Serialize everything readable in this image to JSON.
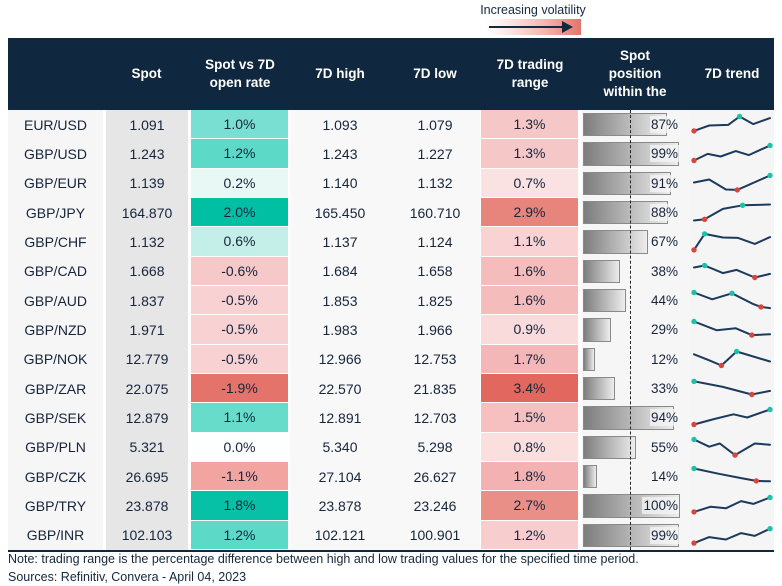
{
  "legend": {
    "label": "Increasing volatility"
  },
  "table": {
    "headers": [
      {
        "id": "pair",
        "lines": []
      },
      {
        "id": "spot",
        "lines": [
          "Spot"
        ]
      },
      {
        "id": "delta",
        "lines": [
          "Spot vs 7D",
          "open rate"
        ]
      },
      {
        "id": "high",
        "lines": [
          "7D high"
        ]
      },
      {
        "id": "low",
        "lines": [
          "7D low"
        ]
      },
      {
        "id": "range",
        "lines": [
          "7D trading",
          "range"
        ]
      },
      {
        "id": "position",
        "lines": [
          "Spot",
          "position",
          "within the"
        ]
      },
      {
        "id": "trend",
        "lines": [
          "7D trend"
        ]
      }
    ]
  },
  "chart_data": {
    "type": "table",
    "title": "FX 7-day volatility table",
    "columns": [
      "Pair",
      "Spot",
      "Spot vs 7D open rate",
      "7D high",
      "7D low",
      "7D trading range",
      "Spot position within the 7D range",
      "7D trend"
    ],
    "rows": [
      {
        "pair": "EUR/USD",
        "spot": "1.091",
        "delta": "1.0%",
        "delta_color": "#7adfd3",
        "high": "1.093",
        "low": "1.079",
        "range": "1.3%",
        "range_color": "#f6c7c7",
        "position": "87%",
        "position_pct": 87,
        "spark": {
          "points": [
            [
              0,
              82
            ],
            [
              20,
              55
            ],
            [
              45,
              52
            ],
            [
              60,
              10
            ],
            [
              78,
              48
            ],
            [
              100,
              18
            ]
          ],
          "red": [
            0
          ],
          "teal": [
            3
          ]
        }
      },
      {
        "pair": "GBP/USD",
        "spot": "1.243",
        "delta": "1.2%",
        "delta_color": "#5cd9c7",
        "high": "1.243",
        "low": "1.227",
        "range": "1.3%",
        "range_color": "#f6c7c7",
        "position": "99%",
        "position_pct": 99,
        "spark": {
          "points": [
            [
              0,
              85
            ],
            [
              18,
              52
            ],
            [
              35,
              65
            ],
            [
              55,
              38
            ],
            [
              72,
              58
            ],
            [
              100,
              10
            ]
          ],
          "red": [
            0
          ],
          "teal": [
            5
          ]
        }
      },
      {
        "pair": "GBP/EUR",
        "spot": "1.139",
        "delta": "0.2%",
        "delta_color": "#e8f8f5",
        "high": "1.140",
        "low": "1.132",
        "range": "0.7%",
        "range_color": "#fbe2e2",
        "position": "91%",
        "position_pct": 91,
        "spark": {
          "points": [
            [
              0,
              45
            ],
            [
              20,
              30
            ],
            [
              42,
              80
            ],
            [
              57,
              82
            ],
            [
              100,
              10
            ]
          ],
          "red": [
            3
          ],
          "teal": [
            4
          ]
        }
      },
      {
        "pair": "GBP/JPY",
        "spot": "164.870",
        "delta": "2.0%",
        "delta_color": "#00bfa3",
        "high": "165.450",
        "low": "160.710",
        "range": "2.9%",
        "range_color": "#e7857d",
        "position": "88%",
        "position_pct": 88,
        "spark": {
          "points": [
            [
              0,
              90
            ],
            [
              14,
              84
            ],
            [
              38,
              32
            ],
            [
              64,
              14
            ],
            [
              100,
              10
            ]
          ],
          "red": [
            1
          ],
          "teal": [
            3
          ]
        }
      },
      {
        "pair": "GBP/CHF",
        "spot": "1.132",
        "delta": "0.6%",
        "delta_color": "#c3efe8",
        "high": "1.137",
        "low": "1.124",
        "range": "1.1%",
        "range_color": "#f9d3d3",
        "position": "67%",
        "position_pct": 67,
        "spark": {
          "points": [
            [
              0,
              92
            ],
            [
              14,
              12
            ],
            [
              38,
              30
            ],
            [
              58,
              32
            ],
            [
              80,
              62
            ],
            [
              100,
              28
            ]
          ],
          "red": [
            0
          ],
          "teal": [
            1
          ]
        }
      },
      {
        "pair": "GBP/CAD",
        "spot": "1.668",
        "delta": "-0.6%",
        "delta_color": "#f7c8c8",
        "high": "1.684",
        "low": "1.658",
        "range": "1.6%",
        "range_color": "#f5bcbc",
        "position": "38%",
        "position_pct": 38,
        "spark": {
          "points": [
            [
              0,
              30
            ],
            [
              14,
              20
            ],
            [
              38,
              58
            ],
            [
              56,
              42
            ],
            [
              80,
              80
            ],
            [
              100,
              62
            ]
          ],
          "red": [
            4
          ],
          "teal": [
            1
          ]
        }
      },
      {
        "pair": "GBP/AUD",
        "spot": "1.837",
        "delta": "-0.5%",
        "delta_color": "#f8d2d2",
        "high": "1.853",
        "low": "1.825",
        "range": "1.6%",
        "range_color": "#f5bcbc",
        "position": "44%",
        "position_pct": 44,
        "spark": {
          "points": [
            [
              0,
              10
            ],
            [
              24,
              44
            ],
            [
              50,
              14
            ],
            [
              78,
              68
            ],
            [
              88,
              82
            ],
            [
              100,
              88
            ]
          ],
          "red": [
            4
          ],
          "teal": [
            0,
            2
          ]
        }
      },
      {
        "pair": "GBP/NZD",
        "spot": "1.971",
        "delta": "-0.5%",
        "delta_color": "#f8d2d2",
        "high": "1.983",
        "low": "1.966",
        "range": "0.9%",
        "range_color": "#fadbdb",
        "position": "29%",
        "position_pct": 29,
        "spark": {
          "points": [
            [
              0,
              10
            ],
            [
              30,
              54
            ],
            [
              55,
              44
            ],
            [
              76,
              78
            ],
            [
              100,
              74
            ]
          ],
          "red": [
            3
          ],
          "teal": [
            0
          ]
        }
      },
      {
        "pair": "GBP/NOK",
        "spot": "12.779",
        "delta": "-0.5%",
        "delta_color": "#f8d2d2",
        "high": "12.966",
        "low": "12.753",
        "range": "1.7%",
        "range_color": "#f4b7b7",
        "position": "12%",
        "position_pct": 12,
        "spark": {
          "points": [
            [
              0,
              24
            ],
            [
              20,
              54
            ],
            [
              36,
              80
            ],
            [
              56,
              10
            ],
            [
              100,
              60
            ]
          ],
          "red": [
            2
          ],
          "teal": [
            3
          ]
        }
      },
      {
        "pair": "GBP/ZAR",
        "spot": "22.075",
        "delta": "-1.9%",
        "delta_color": "#e4746b",
        "high": "22.570",
        "low": "21.835",
        "range": "3.4%",
        "range_color": "#e2685f",
        "position": "33%",
        "position_pct": 33,
        "spark": {
          "points": [
            [
              0,
              14
            ],
            [
              38,
              42
            ],
            [
              76,
              80
            ],
            [
              100,
              62
            ]
          ],
          "red": [
            2
          ],
          "teal": [
            0
          ]
        }
      },
      {
        "pair": "GBP/SEK",
        "spot": "12.879",
        "delta": "1.1%",
        "delta_color": "#68dccb",
        "high": "12.891",
        "low": "12.703",
        "range": "1.5%",
        "range_color": "#f6c0c0",
        "position": "94%",
        "position_pct": 94,
        "spark": {
          "points": [
            [
              0,
              85
            ],
            [
              26,
              58
            ],
            [
              52,
              34
            ],
            [
              70,
              50
            ],
            [
              100,
              10
            ]
          ],
          "red": [
            0
          ],
          "teal": [
            4
          ]
        }
      },
      {
        "pair": "GBP/PLN",
        "spot": "5.321",
        "delta": "0.0%",
        "delta_color": "#fdfefe",
        "high": "5.340",
        "low": "5.298",
        "range": "0.8%",
        "range_color": "#fbdfdf",
        "position": "55%",
        "position_pct": 55,
        "spark": {
          "points": [
            [
              0,
              10
            ],
            [
              20,
              46
            ],
            [
              34,
              30
            ],
            [
              54,
              88
            ],
            [
              80,
              30
            ],
            [
              100,
              36
            ]
          ],
          "red": [
            3
          ],
          "teal": [
            0
          ]
        }
      },
      {
        "pair": "GBP/CZK",
        "spot": "26.695",
        "delta": "-1.1%",
        "delta_color": "#f2a5a0",
        "high": "27.104",
        "low": "26.627",
        "range": "1.8%",
        "range_color": "#f3b1b1",
        "position": "14%",
        "position_pct": 14,
        "spark": {
          "points": [
            [
              0,
              10
            ],
            [
              32,
              36
            ],
            [
              62,
              58
            ],
            [
              82,
              72
            ],
            [
              100,
              74
            ]
          ],
          "red": [
            3
          ],
          "teal": [
            0
          ]
        }
      },
      {
        "pair": "GBP/TRY",
        "spot": "23.878",
        "delta": "1.8%",
        "delta_color": "#06c1a5",
        "high": "23.878",
        "low": "23.246",
        "range": "2.7%",
        "range_color": "#e98f87",
        "position": "100%",
        "position_pct": 100,
        "spark": {
          "points": [
            [
              0,
              82
            ],
            [
              22,
              56
            ],
            [
              42,
              64
            ],
            [
              62,
              28
            ],
            [
              78,
              42
            ],
            [
              100,
              10
            ]
          ],
          "red": [
            0
          ],
          "teal": [
            5
          ]
        }
      },
      {
        "pair": "GBP/INR",
        "spot": "102.103",
        "delta": "1.2%",
        "delta_color": "#5cd9c7",
        "high": "102.121",
        "low": "100.901",
        "range": "1.2%",
        "range_color": "#f8cdcd",
        "position": "99%",
        "position_pct": 99,
        "spark": {
          "points": [
            [
              0,
              88
            ],
            [
              20,
              58
            ],
            [
              42,
              70
            ],
            [
              62,
              38
            ],
            [
              80,
              52
            ],
            [
              100,
              16
            ]
          ],
          "red": [
            0
          ],
          "teal": [
            5
          ]
        }
      }
    ]
  },
  "colors": {
    "header_bg": "#10283f",
    "text_navy": "#16243c",
    "spot_column_bg": "#e6e6e6",
    "bar_border": "#8a8a8a",
    "spark_line": "#1b3a5c",
    "spark_low_dot": "#d9453a",
    "spark_high_dot": "#1fc0aa",
    "volatility_low": "#ffffff",
    "volatility_high": "#e4746b"
  },
  "note": "Note: trading range is the percentage difference between high and low trading values for the specified time period.",
  "sources": "Sources: Refinitiv, Convera - April 04, 2023"
}
